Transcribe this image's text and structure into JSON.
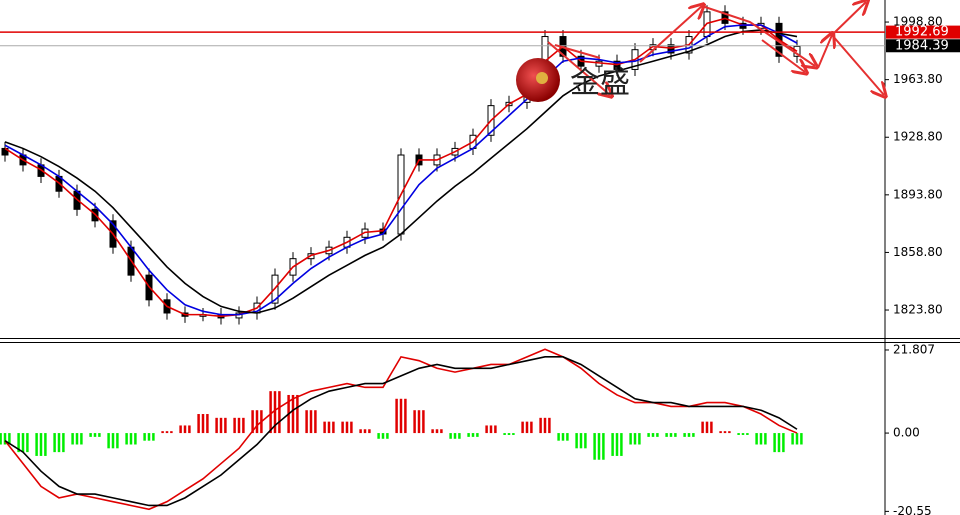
{
  "chart_data": [
    {
      "type": "candlestick",
      "annotation": "金盛",
      "ylim": [
        1806.8,
        2012.2
      ],
      "yticks": [
        {
          "value": 1998.8,
          "label": "1998.80"
        },
        {
          "value": 1963.8,
          "label": "1963.80"
        },
        {
          "value": 1928.8,
          "label": "1928.80"
        },
        {
          "value": 1893.8,
          "label": "1893.80"
        },
        {
          "value": 1858.8,
          "label": "1858.80"
        },
        {
          "value": 1823.8,
          "label": "1823.80"
        }
      ],
      "open": [
        1922,
        1918,
        1912,
        1905,
        1896,
        1885,
        1878,
        1862,
        1845,
        1830,
        1822,
        1820,
        1821,
        1819,
        1822,
        1828,
        1845,
        1855,
        1858,
        1862,
        1868,
        1873,
        1870,
        1918,
        1912,
        1918,
        1922,
        1930,
        1948,
        1950,
        1960,
        1990,
        1978,
        1972,
        1975,
        1970,
        1982,
        1985,
        1980,
        1990,
        2005,
        1998,
        1995,
        1998,
        1978
      ],
      "high": [
        1926,
        1922,
        1916,
        1909,
        1900,
        1889,
        1882,
        1866,
        1849,
        1834,
        1826,
        1825,
        1825,
        1826,
        1832,
        1849,
        1859,
        1862,
        1866,
        1872,
        1877,
        1877,
        1922,
        1922,
        1922,
        1926,
        1934,
        1952,
        1954,
        1964,
        1994,
        1994,
        1982,
        1979,
        1979,
        1986,
        1989,
        1989,
        1994,
        2009,
        2009,
        2002,
        2002,
        2002,
        1988
      ],
      "low": [
        1914,
        1908,
        1901,
        1892,
        1881,
        1874,
        1858,
        1841,
        1826,
        1818,
        1816,
        1817,
        1815,
        1815,
        1818,
        1824,
        1841,
        1851,
        1854,
        1858,
        1864,
        1866,
        1866,
        1908,
        1908,
        1914,
        1918,
        1926,
        1944,
        1946,
        1956,
        1974,
        1968,
        1968,
        1966,
        1966,
        1978,
        1976,
        1976,
        1986,
        1994,
        1991,
        1991,
        1974,
        1974
      ],
      "close": [
        1918,
        1912,
        1905,
        1896,
        1885,
        1878,
        1862,
        1845,
        1830,
        1822,
        1820,
        1821,
        1819,
        1822,
        1828,
        1845,
        1855,
        1858,
        1862,
        1868,
        1873,
        1870,
        1918,
        1912,
        1918,
        1922,
        1930,
        1948,
        1950,
        1960,
        1990,
        1978,
        1972,
        1975,
        1970,
        1982,
        1985,
        1980,
        1990,
        2005,
        1998,
        1995,
        1998,
        1978,
        1984
      ],
      "series": [
        {
          "color": "#e00000",
          "values": [
            1922,
            1915,
            1909,
            1901,
            1891,
            1882,
            1870,
            1854,
            1838,
            1826,
            1821,
            1821,
            1820,
            1821,
            1825,
            1837,
            1850,
            1857,
            1860,
            1865,
            1871,
            1872,
            1894,
            1915,
            1915,
            1920,
            1926,
            1939,
            1949,
            1955,
            1975,
            1984,
            1975,
            1974,
            1973,
            1976,
            1984,
            1983,
            1985,
            1998,
            2001,
            1997,
            1997,
            1988,
            1981
          ]
        },
        {
          "color": "#0000e0",
          "values": [
            1924,
            1918,
            1912,
            1905,
            1896,
            1887,
            1876,
            1862,
            1848,
            1836,
            1827,
            1823,
            1821,
            1821,
            1823,
            1830,
            1840,
            1849,
            1856,
            1862,
            1867,
            1870,
            1885,
            1900,
            1910,
            1916,
            1922,
            1932,
            1942,
            1952,
            1965,
            1975,
            1977,
            1976,
            1974,
            1975,
            1979,
            1981,
            1983,
            1990,
            1996,
            1997,
            1997,
            1992,
            1986
          ]
        },
        {
          "color": "#000000",
          "values": [
            1926,
            1922,
            1917,
            1911,
            1904,
            1896,
            1886,
            1874,
            1862,
            1850,
            1840,
            1832,
            1826,
            1823,
            1822,
            1825,
            1831,
            1838,
            1845,
            1851,
            1857,
            1862,
            1870,
            1880,
            1890,
            1899,
            1907,
            1916,
            1925,
            1934,
            1944,
            1954,
            1961,
            1966,
            1969,
            1972,
            1975,
            1978,
            1981,
            1985,
            1990,
            1993,
            1994,
            1992,
            1990
          ]
        }
      ],
      "price_lines": [
        {
          "value": 1992.69,
          "color": "#e00000"
        },
        {
          "value": 1984.39,
          "color": "#000000"
        }
      ]
    },
    {
      "type": "macd",
      "ylim": [
        -21.5,
        23.9
      ],
      "yticks": [
        21.807,
        {
          "value": 0,
          "label": "0.00"
        },
        -20.55
      ],
      "histogram": [
        -3,
        -5,
        -6,
        -5,
        -3,
        -1,
        -4,
        -3,
        -2,
        0.5,
        2,
        5,
        4,
        4,
        6,
        11,
        10,
        6,
        3,
        3,
        1,
        -1.5,
        9,
        6,
        1,
        -1.5,
        -1,
        2,
        -0.5,
        3,
        4,
        -2,
        -4,
        -7,
        -6,
        -3,
        -1,
        -1,
        -1,
        3,
        0.5,
        -0.5,
        -3,
        -5,
        -3
      ],
      "positive_color": "#e00000",
      "negative_color": "#00ee00",
      "series": [
        {
          "color": "#e00000",
          "values": [
            -2,
            -8,
            -14,
            -17,
            -16,
            -17,
            -18,
            -19,
            -20,
            -18,
            -15,
            -12,
            -8,
            -4,
            2,
            6,
            9,
            11,
            12,
            13,
            12,
            12,
            20,
            19,
            17,
            16,
            17,
            18,
            18,
            20,
            22,
            20,
            17,
            13,
            10,
            8,
            8,
            7,
            7,
            8,
            8,
            7,
            5,
            2,
            0
          ]
        },
        {
          "color": "#000000",
          "values": [
            -2,
            -5,
            -10,
            -14,
            -16,
            -16,
            -17,
            -18,
            -19,
            -19,
            -17,
            -14,
            -11,
            -7,
            -3,
            2,
            6,
            9,
            11,
            12,
            13,
            13,
            15,
            17,
            18,
            17,
            17,
            17,
            18,
            19,
            20,
            20,
            18,
            15,
            12,
            9,
            8,
            8,
            7,
            7,
            7,
            7,
            6,
            4,
            1
          ]
        }
      ]
    }
  ]
}
